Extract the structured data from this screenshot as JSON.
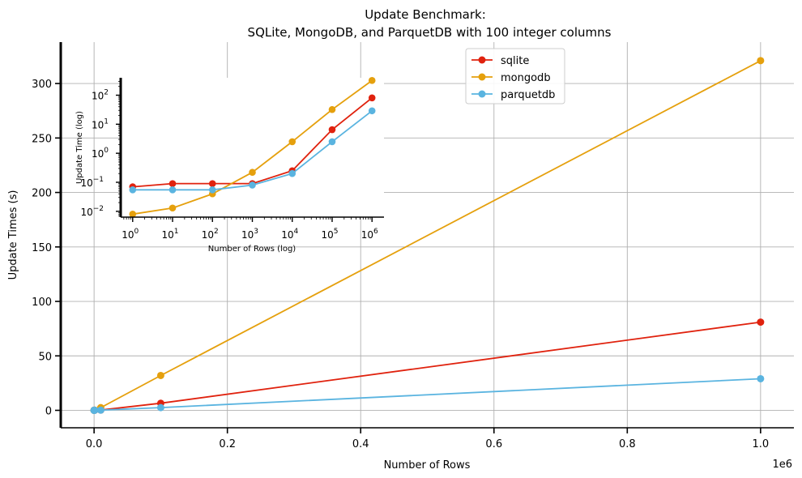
{
  "chart_data": {
    "type": "line",
    "title": "Update Benchmark:",
    "subtitle": "SQLite, MongoDB, and ParquetDB with 100 integer columns",
    "xlabel": "Number of Rows",
    "ylabel": "Update Times (s)",
    "x_offset_label": "1e6",
    "xlim": [
      -50000,
      1050000
    ],
    "ylim": [
      -16,
      338
    ],
    "xticks": [
      0,
      200000,
      400000,
      600000,
      800000,
      1000000
    ],
    "xtick_labels": [
      "0.0",
      "0.2",
      "0.4",
      "0.6",
      "0.8",
      "1.0"
    ],
    "yticks": [
      0,
      50,
      100,
      150,
      200,
      250,
      300
    ],
    "ytick_labels": [
      "0",
      "50",
      "100",
      "150",
      "200",
      "250",
      "300"
    ],
    "grid": true,
    "legend_position": "top-right",
    "x": [
      1,
      10,
      100,
      1000,
      10000,
      100000,
      1000000
    ],
    "series": [
      {
        "name": "sqlite",
        "color": "#e0220e",
        "values": [
          0.07,
          0.09,
          0.09,
          0.09,
          0.25,
          6.5,
          81
        ]
      },
      {
        "name": "mongodb",
        "color": "#e5a00d",
        "values": [
          0.008,
          0.013,
          0.04,
          0.22,
          2.5,
          32,
          321
        ]
      },
      {
        "name": "parquetdb",
        "color": "#5ab4e0",
        "values": [
          0.055,
          0.055,
          0.055,
          0.08,
          0.2,
          2.5,
          29
        ]
      }
    ],
    "inset": {
      "type": "line",
      "xlabel": "Number of Rows (log)",
      "ylabel": "Update Time (log)",
      "xscale": "log",
      "yscale": "log",
      "xlim_log10": [
        -0.3,
        6.3
      ],
      "ylim_log10": [
        -2.2,
        2.6
      ],
      "xtick_exponents": [
        0,
        1,
        2,
        3,
        4,
        5,
        6
      ],
      "ytick_exponents": [
        -2,
        -1,
        0,
        1,
        2
      ],
      "tick_base": "10"
    }
  }
}
